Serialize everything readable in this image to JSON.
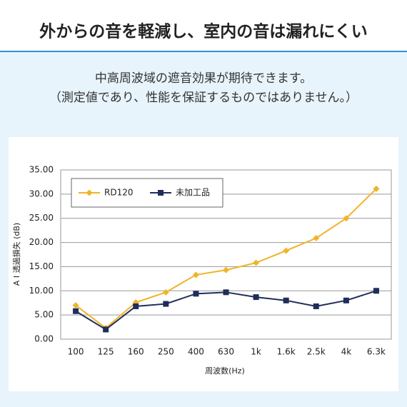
{
  "header": {
    "title": "外からの音を軽減し、室内の音は漏れにくい"
  },
  "subtitle": [
    "中高周波域の遮音効果が期待できます。",
    "（測定値であり、性能を保証するものではありません。）"
  ],
  "chart_data": {
    "type": "line",
    "categories": [
      "100",
      "125",
      "160",
      "250",
      "400",
      "630",
      "1k",
      "1.6k",
      "2.5k",
      "4k",
      "6.3k"
    ],
    "series": [
      {
        "name": "RD120",
        "color": "#f0b429",
        "marker": "diamond",
        "values": [
          7.0,
          2.3,
          7.6,
          9.7,
          13.3,
          14.3,
          15.8,
          18.3,
          20.9,
          25.0,
          31.1
        ]
      },
      {
        "name": "未加工品",
        "color": "#1f2d5a",
        "marker": "square",
        "values": [
          5.8,
          2.0,
          6.8,
          7.3,
          9.4,
          9.7,
          8.7,
          8.0,
          6.8,
          8.0,
          10.0
        ]
      }
    ],
    "ylim": [
      0,
      35
    ],
    "yticks": [
      {
        "value": 0,
        "label": "0.00"
      },
      {
        "value": 5,
        "label": "5.00"
      },
      {
        "value": 10,
        "label": "10.00"
      },
      {
        "value": 15,
        "label": "15.00"
      },
      {
        "value": 20,
        "label": "20.00"
      },
      {
        "value": 25,
        "label": "25.00"
      },
      {
        "value": 30,
        "label": "30.00"
      },
      {
        "value": 35,
        "label": "35.00"
      }
    ],
    "ylabel": "A I 透過損失 (dB)",
    "xlabel": "周波数(Hz)",
    "grid": true,
    "legend": "upper left"
  }
}
